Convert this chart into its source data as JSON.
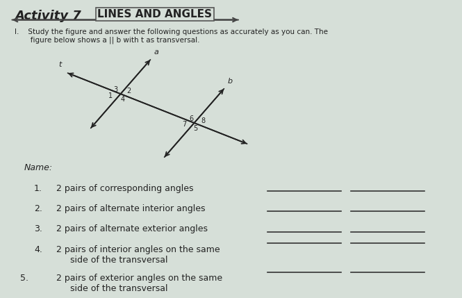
{
  "title": "Activity 7",
  "subtitle": "LINES AND ANGLES",
  "bg_color": "#d6dfd8",
  "instruction": "I.    Study the figure and answer the following questions as accurately as you can. The\n       figure below shows a || b with t as transversal.",
  "line_a_label": "a",
  "line_b_label": "b",
  "line_t_label": "t",
  "angle_labels_intersection1": [
    "3",
    "2",
    "1",
    "4"
  ],
  "angle_labels_intersection2": [
    "6",
    "8",
    "7",
    "5"
  ],
  "name_label": "Name:",
  "questions": [
    "2 pairs of corresponding angles",
    "2 pairs of alternate interior angles",
    "2 pairs of alternate exterior angles",
    "2 pairs of interior angles on the same\n     side of the transversal",
    "2 pairs of exterior angles on the same\n     side of the transversal"
  ],
  "question_numbers": [
    "1.",
    "2.",
    "3.",
    "4.",
    "5."
  ],
  "answer_line_color": "#333333",
  "text_color": "#222222",
  "title_color": "#222222"
}
